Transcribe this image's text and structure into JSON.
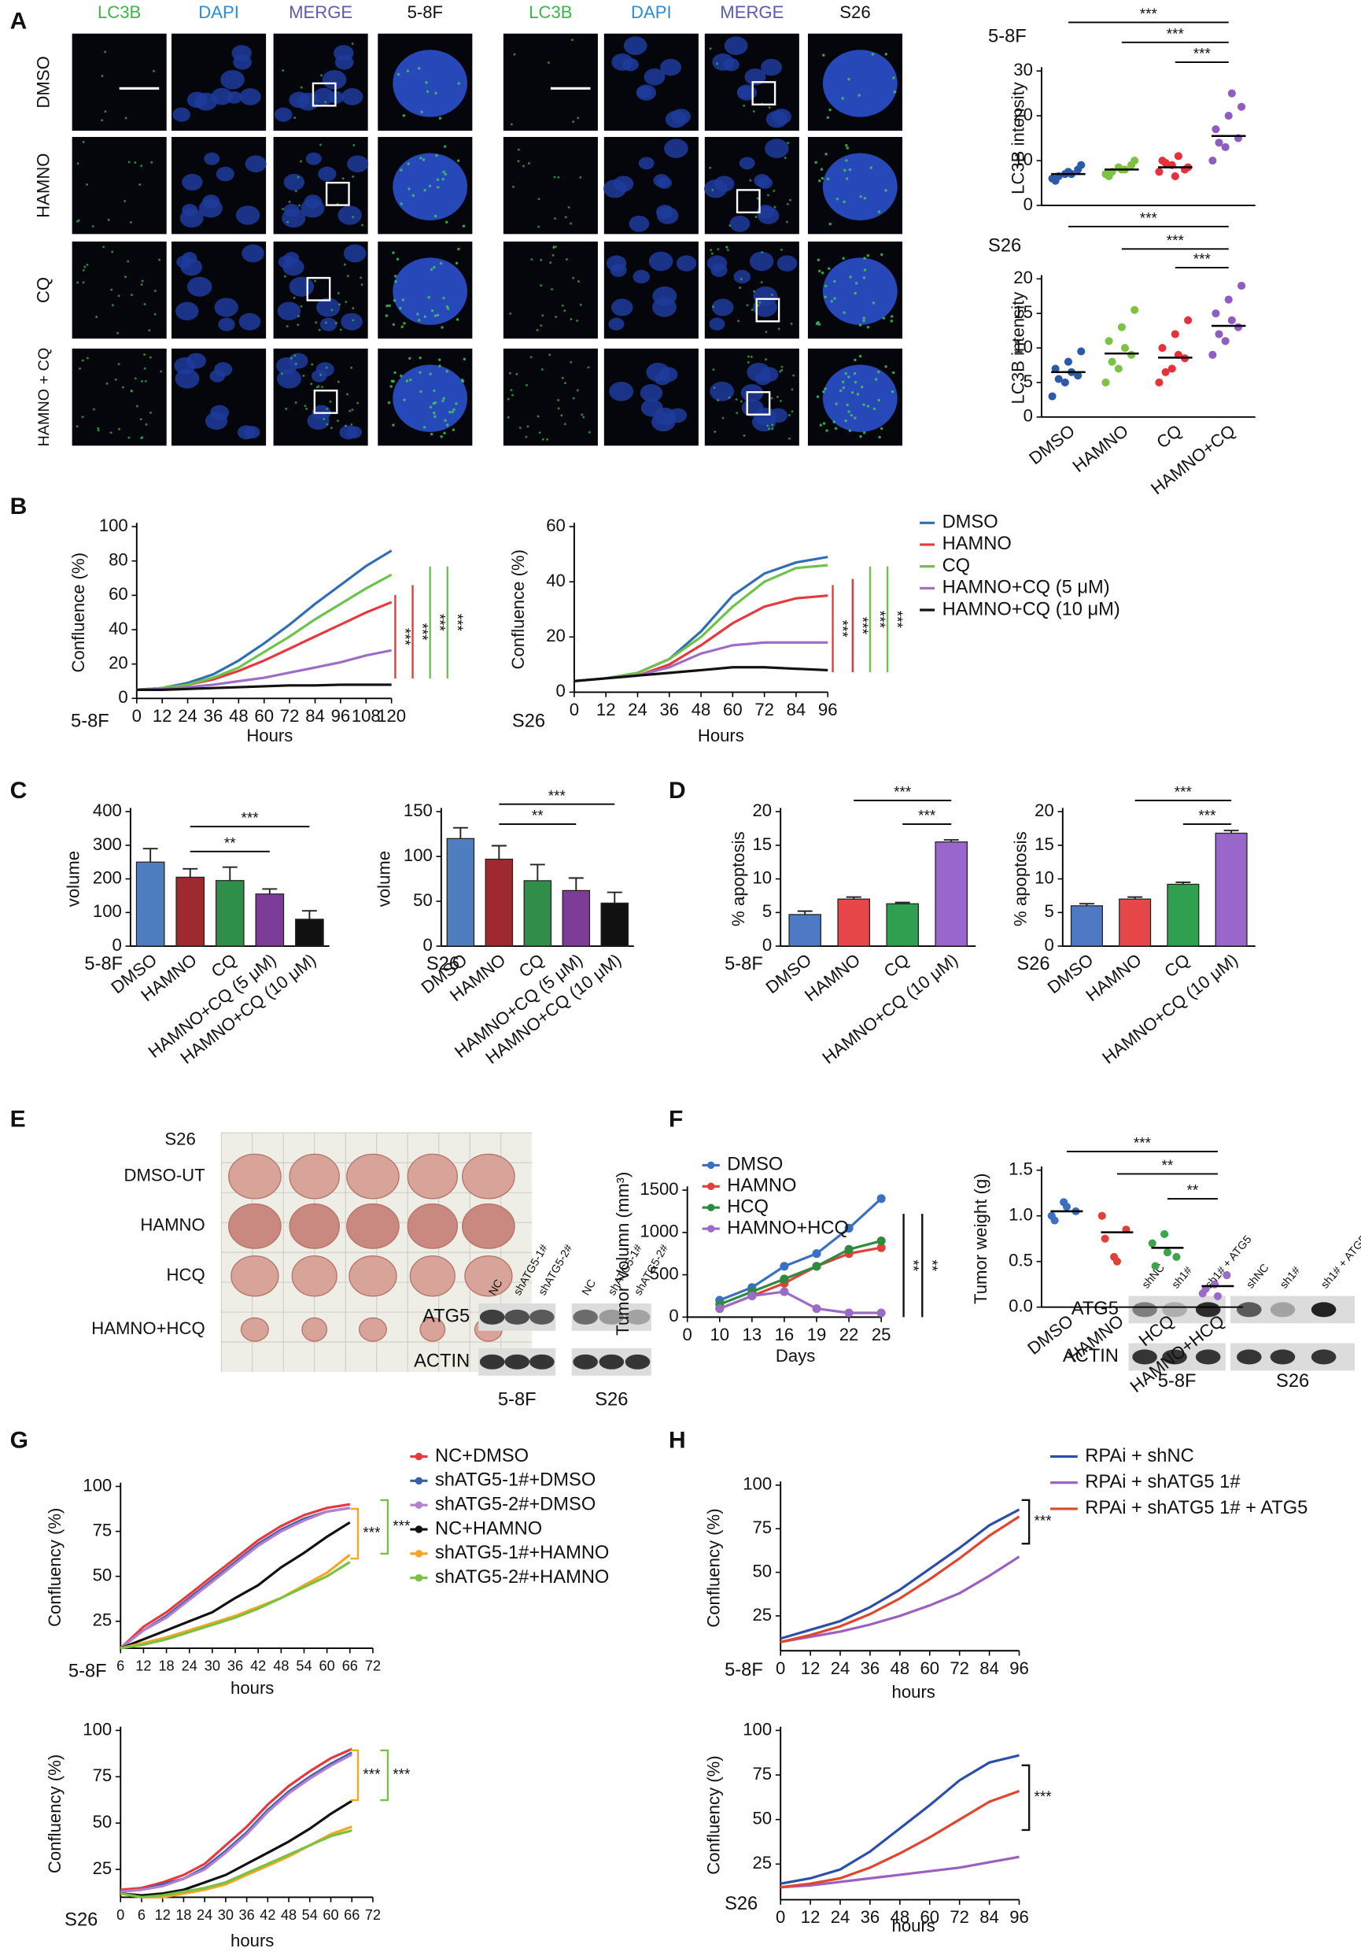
{
  "labels": {
    "panels": [
      "A",
      "B",
      "C",
      "D",
      "E",
      "F",
      "G",
      "H"
    ],
    "a_channels": [
      "LC3B",
      "DAPI",
      "MERGE"
    ],
    "a_lines": [
      "5-8F",
      "S26"
    ],
    "a_rows": [
      "DMSO",
      "HAMNO",
      "CQ",
      "HAMNO + CQ"
    ],
    "e_sample": "S26",
    "e_rows": [
      "DMSO-UT",
      "HAMNO",
      "HCQ",
      "HAMNO+HCQ"
    ],
    "blot_g": {
      "lanes": [
        "NC",
        "shATG5-1#",
        "shATG5-2#"
      ],
      "proteins": [
        "ATG5",
        "ACTIN"
      ],
      "lines": [
        "5-8F",
        "S26"
      ]
    },
    "blot_h": {
      "lanes": [
        "shNC",
        "sh1#",
        "sh1# + ATG5"
      ],
      "proteins": [
        "ATG5",
        "ACTIN"
      ],
      "lines": [
        "5-8F",
        "S26"
      ]
    }
  },
  "chart_data": [
    {
      "type": "dot",
      "title": "5-8F",
      "ylabel": "LC3B intensity",
      "ylim": [
        0,
        30
      ],
      "yticks": [
        0,
        10,
        20,
        30
      ],
      "colors": [
        "#2d5aa8",
        "#7dc242",
        "#e8303a",
        "#8e5cc2"
      ],
      "values": [
        7,
        8,
        8.5,
        15.5
      ],
      "points": [
        [
          6,
          7,
          8,
          5.5,
          7.5,
          9,
          6.5,
          7
        ],
        [
          7,
          8.5,
          9,
          6.5,
          8,
          10,
          7.5,
          8
        ],
        [
          7.5,
          9,
          8,
          10,
          6.5,
          8.5,
          9.5,
          11
        ],
        [
          10,
          13,
          15,
          17,
          20,
          22,
          14,
          25
        ]
      ],
      "annotations": [
        "***",
        "***",
        "***"
      ]
    },
    {
      "type": "dot",
      "title": "S26",
      "ylabel": "LC3B intensity",
      "ylim": [
        0,
        20
      ],
      "yticks": [
        0,
        5,
        10,
        15,
        20
      ],
      "categories": [
        "DMSO",
        "HAMNO",
        "CQ",
        "HAMNO+CQ"
      ],
      "colors": [
        "#2d5aa8",
        "#7dc242",
        "#e8303a",
        "#8e5cc2"
      ],
      "values": [
        6.5,
        9.2,
        8.6,
        13.2
      ],
      "points": [
        [
          3,
          5,
          6,
          7,
          8,
          9.5,
          5.5,
          6.5
        ],
        [
          5,
          7,
          9,
          11,
          13,
          15.5,
          8,
          10
        ],
        [
          5,
          7,
          8.5,
          10,
          12,
          14,
          6.5,
          9
        ],
        [
          9,
          11,
          13,
          15,
          17,
          19,
          12,
          14
        ]
      ],
      "annotations": [
        "***",
        "***",
        "***"
      ]
    },
    {
      "type": "line",
      "title": "5-8F",
      "ylabel": "Confluence (%)",
      "xlabel": "Hours",
      "x": [
        0,
        12,
        24,
        36,
        48,
        60,
        72,
        84,
        96,
        108,
        120
      ],
      "xlim": [
        0,
        120
      ],
      "xticks": [
        0,
        12,
        24,
        36,
        48,
        60,
        72,
        84,
        96,
        108,
        120
      ],
      "ylim": [
        0,
        100
      ],
      "yticks": [
        0,
        20,
        40,
        60,
        80,
        100
      ],
      "series": [
        {
          "color": "#2f6db5",
          "values": [
            5,
            6,
            9,
            14,
            22,
            32,
            43,
            55,
            66,
            77,
            86
          ]
        },
        {
          "color": "#e8383d",
          "values": [
            5,
            6,
            8,
            11,
            16,
            22,
            29,
            36,
            43,
            50,
            56
          ]
        },
        {
          "color": "#6cc24a",
          "values": [
            5,
            6,
            8,
            12,
            18,
            27,
            36,
            46,
            55,
            64,
            72
          ]
        },
        {
          "color": "#9d6cc7",
          "values": [
            5,
            5.5,
            6.5,
            8,
            10,
            12,
            15,
            18,
            21,
            25,
            28
          ]
        },
        {
          "color": "#111111",
          "values": [
            5,
            5,
            5.5,
            6,
            6.5,
            7,
            7.5,
            7.5,
            8,
            8,
            8
          ]
        }
      ],
      "annotations": [
        "***",
        "***",
        "***",
        "***"
      ]
    },
    {
      "type": "line",
      "title": "S26",
      "ylabel": "Confluence (%)",
      "xlabel": "Hours",
      "x": [
        0,
        12,
        24,
        36,
        48,
        60,
        72,
        84,
        96
      ],
      "xlim": [
        0,
        96
      ],
      "xticks": [
        0,
        12,
        24,
        36,
        48,
        60,
        72,
        84,
        96
      ],
      "ylim": [
        0,
        60
      ],
      "yticks": [
        0,
        20,
        40,
        60
      ],
      "series": [
        {
          "name": "DMSO",
          "color": "#2f6db5",
          "values": [
            4,
            5,
            7,
            12,
            22,
            35,
            43,
            47,
            49
          ]
        },
        {
          "name": "HAMNO",
          "color": "#e8383d",
          "values": [
            4,
            5,
            6,
            10,
            17,
            25,
            31,
            34,
            35
          ]
        },
        {
          "name": "CQ",
          "color": "#6cc24a",
          "values": [
            4,
            5,
            7,
            12,
            20,
            31,
            40,
            45,
            46
          ]
        },
        {
          "name": "HAMNO+CQ (5 μM)",
          "color": "#9d6cc7",
          "values": [
            4,
            5,
            6,
            9,
            14,
            17,
            18,
            18,
            18
          ]
        },
        {
          "name": "HAMNO+CQ (10 μM)",
          "color": "#111111",
          "values": [
            4,
            5,
            6,
            7,
            8,
            9,
            9,
            8.5,
            8
          ]
        }
      ],
      "annotations": [
        "***",
        "***",
        "***",
        "***"
      ]
    },
    {
      "type": "bar",
      "title": "5-8F",
      "ylabel": "volume",
      "categories": [
        "DMSO",
        "HAMNO",
        "CQ",
        "HAMNO+CQ (5 μM)",
        "HAMNO+CQ (10 μM)"
      ],
      "values": [
        250,
        205,
        195,
        155,
        80
      ],
      "errors": [
        40,
        25,
        40,
        15,
        25
      ],
      "colors": [
        "#4f7ec0",
        "#9e2a2f",
        "#2f8f4a",
        "#7d3c98",
        "#111111"
      ],
      "ylim": [
        0,
        400
      ],
      "yticks": [
        0,
        100,
        200,
        300,
        400
      ],
      "annotations": [
        "***",
        "**"
      ]
    },
    {
      "type": "bar",
      "title": "S26",
      "ylabel": "volume",
      "categories": [
        "DMSO",
        "HAMNO",
        "CQ",
        "HAMNO+CQ (5 μM)",
        "HAMNO+CQ (10 μM)"
      ],
      "values": [
        120,
        97,
        73,
        62,
        48
      ],
      "errors": [
        12,
        15,
        18,
        14,
        12
      ],
      "colors": [
        "#4f7ec0",
        "#9e2a2f",
        "#2f8f4a",
        "#7d3c98",
        "#111111"
      ],
      "ylim": [
        0,
        150
      ],
      "yticks": [
        0,
        50,
        100,
        150
      ],
      "annotations": [
        "***",
        "**"
      ]
    },
    {
      "type": "bar",
      "title": "5-8F",
      "ylabel": "% apoptosis",
      "categories": [
        "DMSO",
        "HAMNO",
        "CQ",
        "HAMNO+CQ (10 μM)"
      ],
      "values": [
        4.7,
        7,
        6.3,
        15.5
      ],
      "errors": [
        0.5,
        0.3,
        0.2,
        0.3
      ],
      "colors": [
        "#4e79c4",
        "#e8474a",
        "#2fa050",
        "#9966cc"
      ],
      "ylim": [
        0,
        20
      ],
      "yticks": [
        0,
        5,
        10,
        15,
        20
      ],
      "annotations": [
        "***",
        "***"
      ]
    },
    {
      "type": "bar",
      "title": "S26",
      "ylabel": "% apoptosis",
      "categories": [
        "DMSO",
        "HAMNO",
        "CQ",
        "HAMNO+CQ (10 μM)"
      ],
      "values": [
        6,
        7,
        9.2,
        16.8
      ],
      "errors": [
        0.3,
        0.3,
        0.3,
        0.4
      ],
      "colors": [
        "#4e79c4",
        "#e8474a",
        "#2fa050",
        "#9966cc"
      ],
      "ylim": [
        0,
        20
      ],
      "yticks": [
        0,
        5,
        10,
        15,
        20
      ],
      "annotations": [
        "***",
        "***"
      ]
    },
    {
      "type": "line",
      "ylabel": "Tumor Volumn (mm³)",
      "xlabel": "Days",
      "markers": true,
      "categories": [
        "0",
        "10",
        "13",
        "16",
        "19",
        "22",
        "25"
      ],
      "ylim": [
        0,
        1500
      ],
      "yticks": [
        0,
        500,
        1000,
        1500
      ],
      "series": [
        {
          "name": "DMSO",
          "color": "#3b6fc4",
          "values": [
            null,
            200,
            350,
            600,
            750,
            1050,
            1400
          ]
        },
        {
          "name": "HAMNO",
          "color": "#e0403a",
          "values": [
            null,
            100,
            250,
            400,
            600,
            750,
            820
          ]
        },
        {
          "name": "HCQ",
          "color": "#2e8b3e",
          "values": [
            null,
            150,
            300,
            450,
            600,
            800,
            900
          ]
        },
        {
          "name": "HAMNO+HCQ",
          "color": "#9a6bc7",
          "values": [
            null,
            100,
            250,
            300,
            100,
            50,
            50
          ]
        }
      ],
      "annotations": [
        "**",
        "**"
      ]
    },
    {
      "type": "dot",
      "ylabel": "Tumor weight (g)",
      "categories": [
        "DMSO",
        "HAMNO",
        "HCQ",
        "HAMNO+HCQ"
      ],
      "colors": [
        "#3b6fc4",
        "#e0403a",
        "#3ea34a",
        "#9a6bc7"
      ],
      "values": [
        1.05,
        0.82,
        0.65,
        0.23
      ],
      "points": [
        [
          1.0,
          1.15,
          1.05,
          0.95,
          1.1
        ],
        [
          1.0,
          0.55,
          0.85,
          0.75,
          0.5
        ],
        [
          0.7,
          0.8,
          0.55,
          0.45,
          0.6
        ],
        [
          0.15,
          0.25,
          0.35,
          0.2,
          0.12
        ]
      ],
      "ylim": [
        0,
        1.5
      ],
      "yticks": [
        {
          "value": 0,
          "label": "0.0"
        },
        0.5,
        {
          "value": 1,
          "label": "1.0"
        },
        1.5
      ],
      "annotations": [
        "***",
        "**",
        "**"
      ]
    },
    {
      "type": "line",
      "title": "5-8F",
      "ylabel": "Confluency (%)",
      "xlabel": "hours",
      "x": [
        6,
        12,
        18,
        24,
        30,
        36,
        42,
        48,
        54,
        60,
        66
      ],
      "xlim": [
        6,
        72
      ],
      "xticks": [
        6,
        12,
        18,
        24,
        30,
        36,
        42,
        48,
        54,
        60,
        66,
        72
      ],
      "ylim": [
        10,
        100
      ],
      "yticks": [
        25,
        50,
        75,
        100
      ],
      "series": [
        {
          "name": "NC+DMSO",
          "color": "#e8383d",
          "values": [
            10,
            22,
            30,
            40,
            50,
            60,
            70,
            78,
            84,
            88,
            90
          ]
        },
        {
          "name": "shATG5-1#+DMSO",
          "color": "#3a5fa8",
          "values": [
            10,
            20,
            28,
            38,
            48,
            58,
            68,
            76,
            82,
            86,
            88
          ]
        },
        {
          "name": "shATG5-2#+DMSO",
          "color": "#b57fd0",
          "values": [
            10,
            20,
            27,
            37,
            47,
            57,
            67,
            75,
            81,
            86,
            88
          ]
        },
        {
          "name": "NC+HAMNO",
          "color": "#111111",
          "values": [
            10,
            15,
            20,
            25,
            30,
            38,
            45,
            55,
            63,
            72,
            80
          ]
        },
        {
          "name": "shATG5-1#+HAMNO",
          "color": "#f5a623",
          "values": [
            10,
            13,
            16,
            20,
            24,
            28,
            33,
            38,
            45,
            52,
            62
          ]
        },
        {
          "name": "shATG5-2#+HAMNO",
          "color": "#7ac143",
          "values": [
            10,
            12,
            15,
            19,
            23,
            27,
            32,
            38,
            44,
            50,
            58
          ]
        }
      ],
      "annotations": [
        "***",
        "***"
      ]
    },
    {
      "type": "line",
      "title": "S26",
      "ylabel": "Confluency (%)",
      "xlabel": "hours",
      "x": [
        0,
        6,
        12,
        18,
        24,
        30,
        36,
        42,
        48,
        54,
        60,
        66
      ],
      "xlim": [
        0,
        72
      ],
      "xticks": [
        0,
        6,
        12,
        18,
        24,
        30,
        36,
        42,
        48,
        54,
        60,
        66,
        72
      ],
      "ylim": [
        10,
        100
      ],
      "yticks": [
        25,
        50,
        75,
        100
      ],
      "series": [
        {
          "color": "#e8383d",
          "values": [
            14,
            15,
            18,
            22,
            28,
            38,
            48,
            60,
            70,
            78,
            85,
            90
          ]
        },
        {
          "color": "#3a5fa8",
          "values": [
            13,
            14,
            17,
            20,
            26,
            35,
            45,
            57,
            67,
            75,
            82,
            88
          ]
        },
        {
          "color": "#b57fd0",
          "values": [
            13,
            14,
            16,
            20,
            25,
            34,
            44,
            56,
            66,
            74,
            81,
            87
          ]
        },
        {
          "color": "#111111",
          "values": [
            12,
            11,
            12,
            14,
            18,
            22,
            28,
            34,
            40,
            47,
            55,
            62
          ]
        },
        {
          "color": "#f5a623",
          "values": [
            12,
            10,
            10,
            12,
            14,
            17,
            22,
            27,
            32,
            38,
            44,
            48
          ]
        },
        {
          "color": "#7ac143",
          "values": [
            12,
            10,
            11,
            13,
            15,
            18,
            23,
            28,
            33,
            38,
            43,
            46
          ]
        }
      ],
      "annotations": [
        "***",
        "***"
      ]
    },
    {
      "type": "line",
      "title": "5-8F",
      "ylabel": "Confluency (%)",
      "xlabel": "hours",
      "x": [
        0,
        12,
        24,
        36,
        48,
        60,
        72,
        84,
        96
      ],
      "xlim": [
        0,
        96
      ],
      "xticks": [
        0,
        12,
        24,
        36,
        48,
        60,
        72,
        84,
        96
      ],
      "ylim": [
        5,
        100
      ],
      "yticks": [
        25,
        50,
        75,
        100
      ],
      "series": [
        {
          "name": "RPAi + shNC",
          "color": "#2b4fa8",
          "values": [
            12,
            17,
            22,
            30,
            40,
            52,
            64,
            77,
            86
          ]
        },
        {
          "name": "RPAi + shATG5 1#",
          "color": "#9b5fc0",
          "values": [
            10,
            13,
            16,
            20,
            25,
            31,
            38,
            48,
            59
          ]
        },
        {
          "name": "RPAi + shATG5 1# + ATG5",
          "color": "#e0452e",
          "values": [
            10,
            14,
            19,
            26,
            35,
            46,
            58,
            71,
            82
          ]
        }
      ],
      "annotations": [
        "***"
      ]
    },
    {
      "type": "line",
      "title": "S26",
      "ylabel": "Confluency (%)",
      "xlabel": "hours",
      "x": [
        0,
        12,
        24,
        36,
        48,
        60,
        72,
        84,
        96
      ],
      "xlim": [
        0,
        96
      ],
      "xticks": [
        0,
        12,
        24,
        36,
        48,
        60,
        72,
        84,
        96
      ],
      "ylim": [
        5,
        100
      ],
      "yticks": [
        25,
        50,
        75,
        100
      ],
      "series": [
        {
          "color": "#2b4fa8",
          "values": [
            14,
            17,
            22,
            32,
            45,
            58,
            72,
            82,
            86
          ]
        },
        {
          "color": "#9b5fc0",
          "values": [
            12,
            13,
            15,
            17,
            19,
            21,
            23,
            26,
            29
          ]
        },
        {
          "color": "#e0452e",
          "values": [
            12,
            14,
            17,
            23,
            31,
            40,
            50,
            60,
            66
          ]
        }
      ],
      "annotations": [
        "***"
      ]
    }
  ]
}
